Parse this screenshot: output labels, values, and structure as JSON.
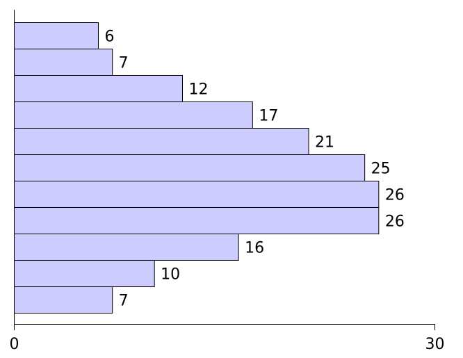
{
  "chart_data": {
    "type": "bar",
    "orientation": "horizontal",
    "values": [
      6,
      7,
      12,
      17,
      21,
      25,
      26,
      26,
      16,
      10,
      7
    ],
    "data_labels": [
      "6",
      "7",
      "12",
      "17",
      "21",
      "25",
      "26",
      "26",
      "16",
      "10",
      "7"
    ],
    "title": "",
    "xlabel": "",
    "ylabel": "",
    "xlim": [
      0,
      30
    ],
    "x_ticks": [
      0,
      30
    ],
    "x_tick_labels": [
      "0",
      "30"
    ],
    "grid": false,
    "legend": "none",
    "bar_color": "#ccccff",
    "edge_color": "#000000"
  }
}
